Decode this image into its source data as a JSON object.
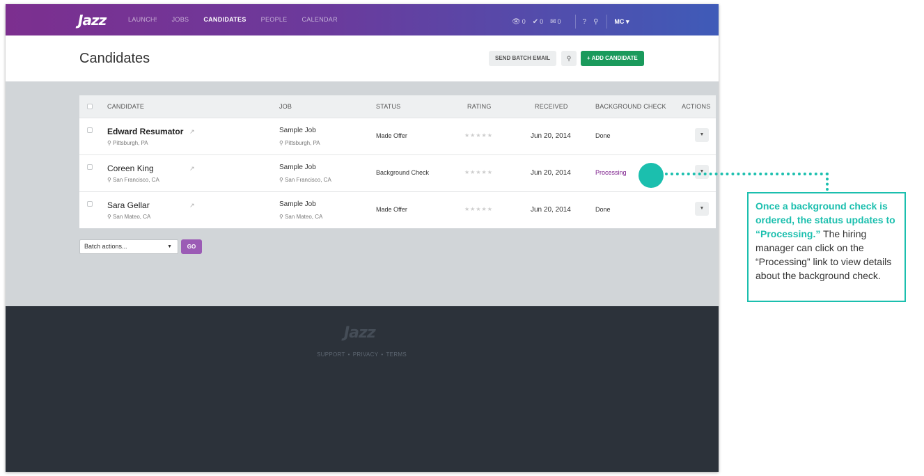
{
  "nav": {
    "logo": "Jazz",
    "links": [
      "LAUNCH!",
      "JOBS",
      "CANDIDATES",
      "PEOPLE",
      "CALENDAR"
    ],
    "active": "CANDIDATES",
    "counters": [
      {
        "icon": "eye-icon",
        "count": "0"
      },
      {
        "icon": "check-icon",
        "count": "0"
      },
      {
        "icon": "envelope-icon",
        "count": "0"
      }
    ],
    "user": "MC"
  },
  "header": {
    "title": "Candidates",
    "send_batch_email": "SEND BATCH EMAIL",
    "add_candidate": "+ ADD CANDIDATE"
  },
  "table": {
    "columns": [
      "CANDIDATE",
      "JOB",
      "STATUS",
      "RATING",
      "RECEIVED",
      "BACKGROUND CHECK",
      "ACTIONS"
    ],
    "rows": [
      {
        "name": "Edward Resumator",
        "location": "Pittsburgh, PA",
        "job": "Sample Job",
        "job_location": "Pittsburgh, PA",
        "status": "Made Offer",
        "rating": "★★★★★",
        "received": "Jun 20, 2014",
        "background_check": "Done"
      },
      {
        "name": "Coreen King",
        "location": "San Francisco, CA",
        "job": "Sample Job",
        "job_location": "San Francisco, CA",
        "status": "Background Check",
        "rating": "★★★★★",
        "received": "Jun 20, 2014",
        "background_check": "Processing"
      },
      {
        "name": "Sara Gellar",
        "location": "San Mateo, CA",
        "job": "Sample Job",
        "job_location": "San Mateo, CA",
        "status": "Made Offer",
        "rating": "★★★★★",
        "received": "Jun 20, 2014",
        "background_check": "Done"
      }
    ]
  },
  "batch": {
    "select_label": "Batch actions...",
    "go": "GO"
  },
  "footer": {
    "logo": "Jazz",
    "links": [
      "SUPPORT",
      "PRIVACY",
      "TERMS"
    ]
  },
  "callout": {
    "highlight": "Once a background check is ordered, the status updates to “Processing.”",
    "text": " The hiring manager can click on the “Processing” link to view details about the background check."
  },
  "colors": {
    "accent": "#1bbfae",
    "brand_purple": "#7c2f8f",
    "add_green": "#1a9a5c",
    "processing": "#7a1b8a"
  }
}
